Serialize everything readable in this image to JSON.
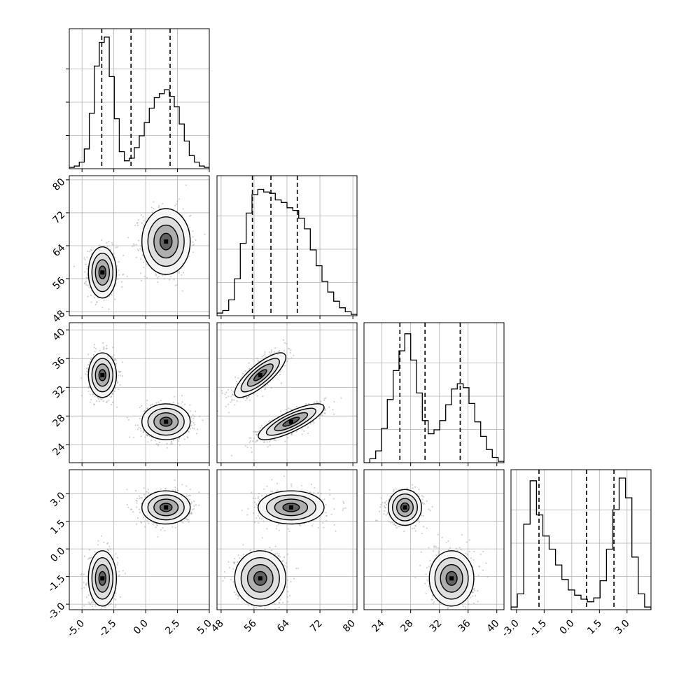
{
  "chart_data": {
    "type": "corner",
    "parameters": [
      {
        "range": [
          -6,
          5
        ],
        "ticks": [
          "-5.0",
          "-2.5",
          "0.0",
          "2.5",
          "5.0"
        ],
        "tick_values": [
          -5,
          -2.5,
          0,
          2.5,
          5
        ],
        "quantiles": [
          -3.45,
          -1.15,
          1.92
        ]
      },
      {
        "range": [
          47,
          81
        ],
        "ticks": [
          "48",
          "56",
          "64",
          "72",
          "80"
        ],
        "tick_values": [
          48,
          56,
          64,
          72,
          80
        ],
        "quantiles": [
          55.6,
          60.1,
          66.5
        ]
      },
      {
        "range": [
          21.5,
          41
        ],
        "ticks": [
          "24",
          "28",
          "32",
          "36",
          "40"
        ],
        "tick_values": [
          24,
          28,
          32,
          36,
          40
        ],
        "quantiles": [
          26.5,
          30.0,
          34.9
        ]
      },
      {
        "range": [
          -3.3,
          4.3
        ],
        "ticks": [
          "-3.0",
          "-1.5",
          "0.0",
          "1.5",
          "3.0"
        ],
        "tick_values": [
          -3,
          -1.5,
          0,
          1.5,
          3
        ],
        "quantiles": [
          -1.78,
          0.8,
          2.29
        ]
      }
    ],
    "histograms": [
      {
        "counts": [
          0.01,
          0.02,
          0.05,
          0.15,
          0.42,
          0.78,
          0.96,
          1.0,
          0.7,
          0.38,
          0.13,
          0.06,
          0.08,
          0.16,
          0.25,
          0.35,
          0.46,
          0.54,
          0.57,
          0.6,
          0.55,
          0.47,
          0.34,
          0.21,
          0.1,
          0.05,
          0.02,
          0.01
        ]
      },
      {
        "counts": [
          0.02,
          0.04,
          0.12,
          0.28,
          0.55,
          0.78,
          0.92,
          0.96,
          0.94,
          0.93,
          0.88,
          0.86,
          0.82,
          0.8,
          0.74,
          0.66,
          0.5,
          0.38,
          0.26,
          0.18,
          0.11,
          0.06,
          0.03,
          0.01
        ]
      },
      {
        "counts": [
          0.0,
          0.03,
          0.09,
          0.26,
          0.48,
          0.7,
          0.85,
          0.98,
          0.78,
          0.53,
          0.32,
          0.22,
          0.25,
          0.32,
          0.44,
          0.56,
          0.6,
          0.57,
          0.45,
          0.31,
          0.2,
          0.1,
          0.04,
          0.01
        ]
      },
      {
        "counts": [
          0.02,
          0.12,
          0.65,
          0.98,
          0.72,
          0.56,
          0.46,
          0.34,
          0.23,
          0.15,
          0.11,
          0.08,
          0.06,
          0.09,
          0.22,
          0.46,
          0.76,
          1.0,
          0.85,
          0.4,
          0.12,
          0.02
        ]
      }
    ],
    "clusters": [
      {
        "mean": [
          -3.4,
          57.5,
          33.7,
          -1.6
        ],
        "sd": [
          0.55,
          3.1,
          1.55,
          0.75
        ]
      },
      {
        "mean": [
          1.6,
          65.0,
          27.2,
          2.25
        ],
        "sd": [
          0.95,
          4.0,
          1.25,
          0.45
        ]
      }
    ],
    "correlations": [
      {
        "pair": [
          1,
          2
        ],
        "r": 0.8
      }
    ],
    "grid": true
  }
}
